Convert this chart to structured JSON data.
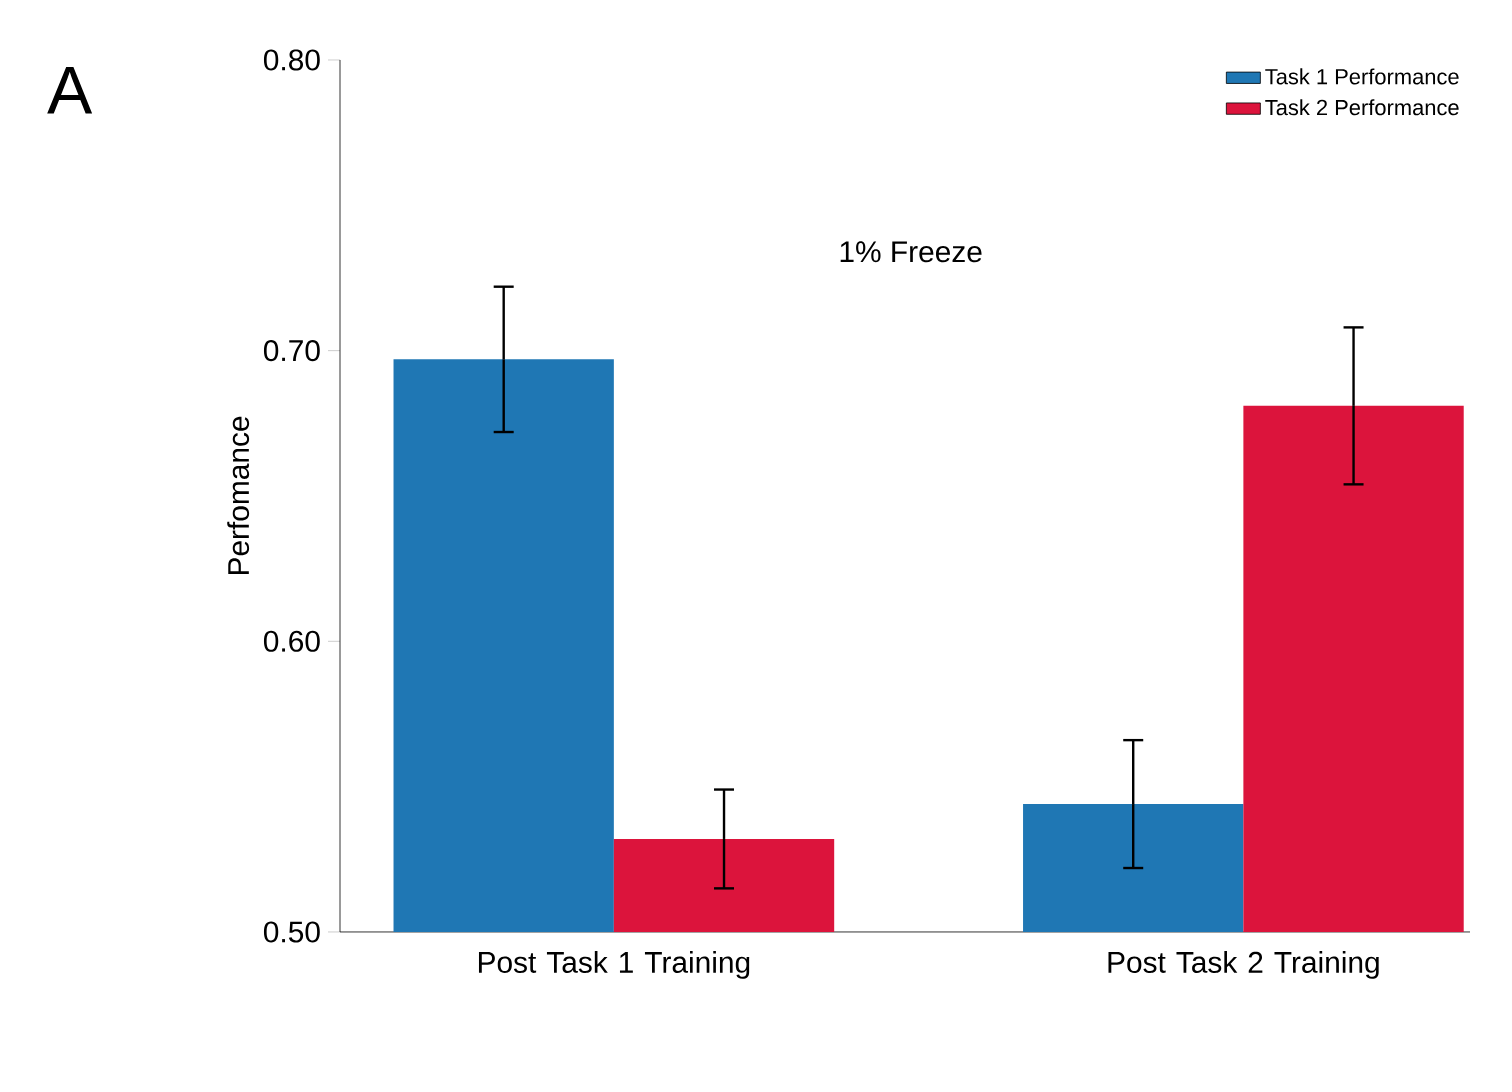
{
  "chart_data": {
    "type": "bar",
    "categories": [
      "Post Task 1 Training",
      "Post Task 2 Training"
    ],
    "series": [
      {
        "name": "Task 1 Performance",
        "color": "#1f77b4",
        "values": [
          0.697,
          0.544
        ],
        "errors": [
          0.025,
          0.022
        ]
      },
      {
        "name": "Task 2 Performance",
        "color": "#dc143c",
        "values": [
          0.532,
          0.681
        ],
        "errors": [
          0.017,
          0.027
        ]
      }
    ],
    "ylabel": "Perfomance",
    "ylim": [
      0.5,
      0.8
    ],
    "yticks": [
      {
        "value": 0.5,
        "label": "0.50"
      },
      {
        "value": 0.6,
        "label": "0.60"
      },
      {
        "value": 0.7,
        "label": "0.70"
      },
      {
        "value": 0.8,
        "label": "0.80"
      }
    ],
    "annotations": [
      "A",
      "1% Freeze"
    ],
    "legend": "top right",
    "grid": false
  }
}
